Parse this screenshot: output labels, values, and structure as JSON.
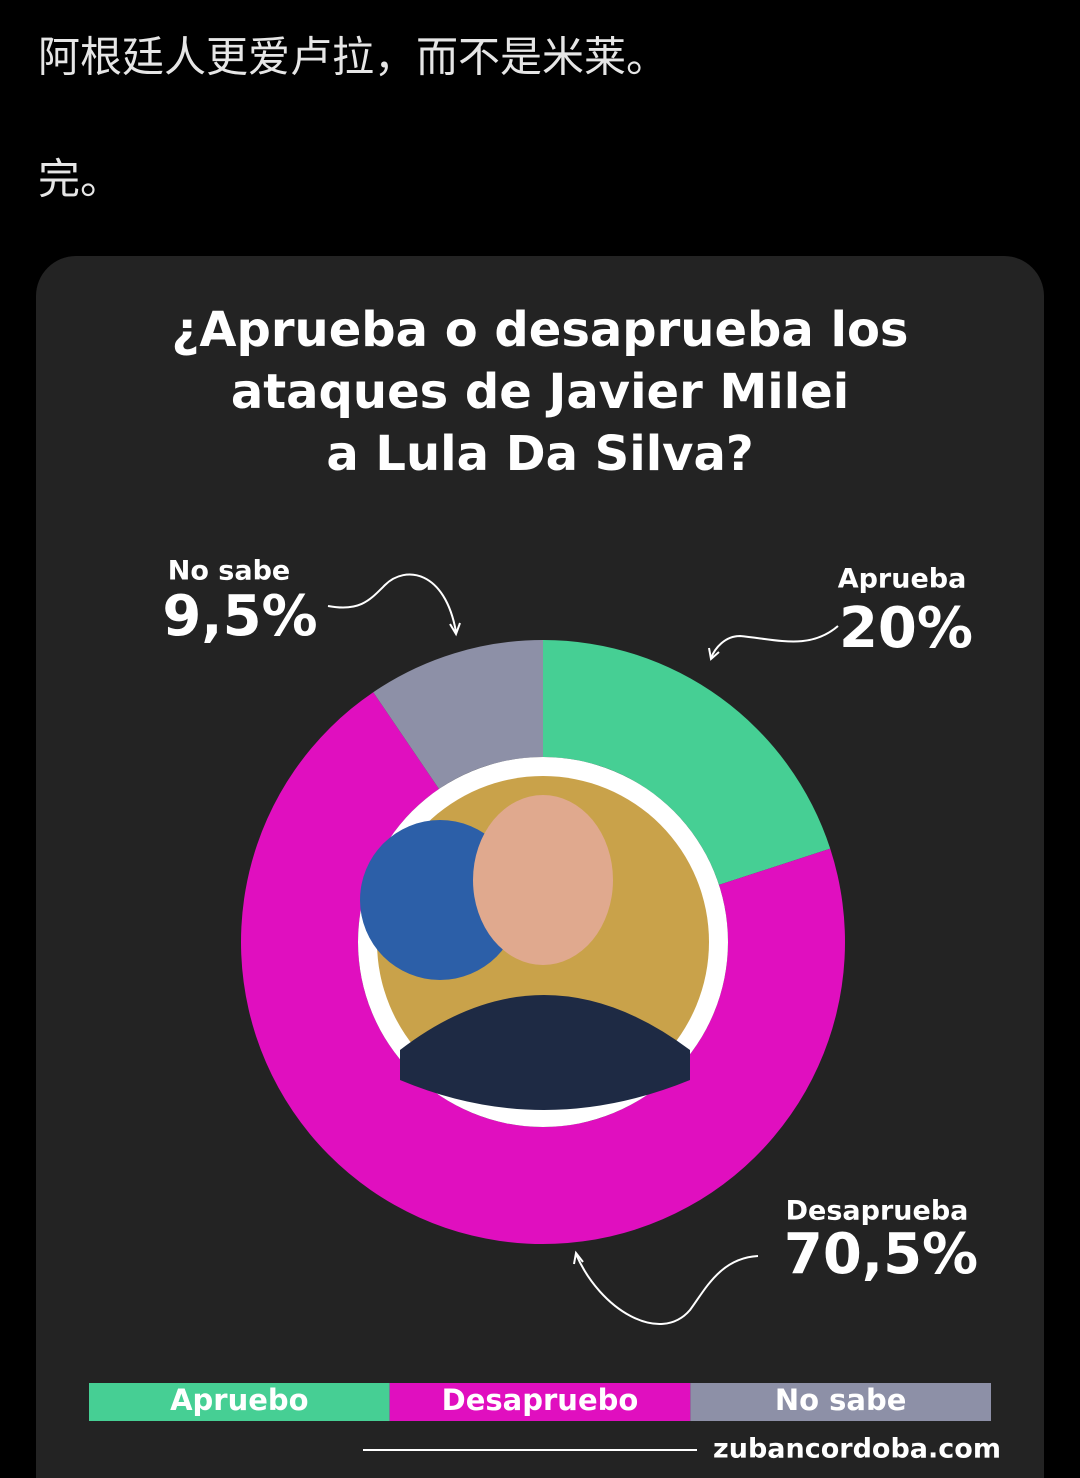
{
  "post": {
    "lines": [
      "阿根廷人更爱卢拉，而不是米莱。",
      "完。"
    ]
  },
  "chart_data": {
    "type": "donut",
    "title": [
      "¿Aprueba o desaprueba los",
      "ataques de Javier Milei",
      "a Lula Da Silva?"
    ],
    "categories": [
      "Aprueba",
      "Desaprueba",
      "No sabe"
    ],
    "values": [
      20,
      70.5,
      9.5
    ],
    "value_labels": [
      "20%",
      "70,5%",
      "9,5%"
    ],
    "colors": [
      "#46cf94",
      "#e00fbf",
      "#8d90a7"
    ],
    "legend": [
      "Apruebo",
      "Desapruebo",
      "No sabe"
    ],
    "source": "zubancordoba.com"
  }
}
